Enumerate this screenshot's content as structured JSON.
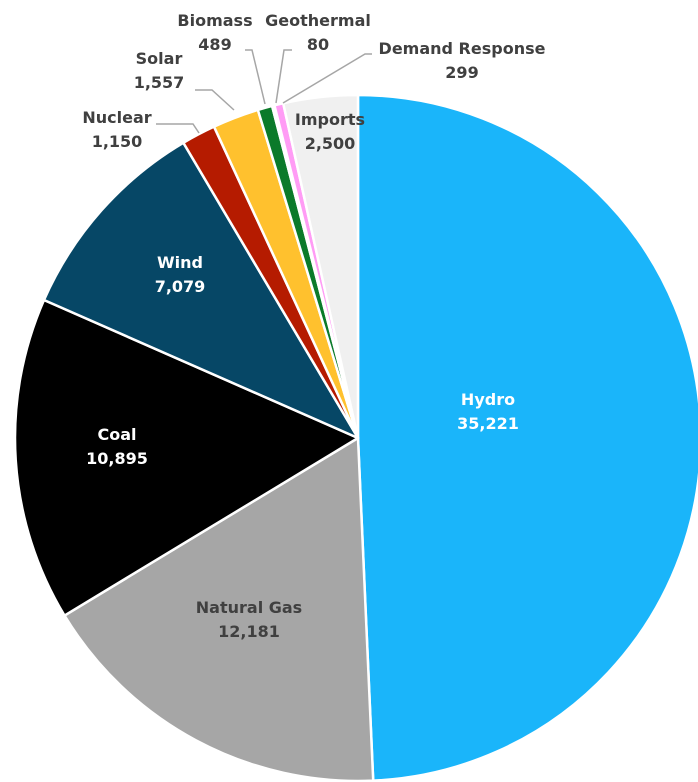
{
  "chart_data": {
    "type": "pie",
    "title": "",
    "slices": [
      {
        "label": "Hydro",
        "value_text": "35,221",
        "value": 35221,
        "color": "#1ab5fa",
        "label_color": "#ffffff"
      },
      {
        "label": "Natural Gas",
        "value_text": "12,181",
        "value": 12181,
        "color": "#a6a6a6",
        "label_color": "#404040"
      },
      {
        "label": "Coal",
        "value_text": "10,895",
        "value": 10895,
        "color": "#000000",
        "label_color": "#ffffff"
      },
      {
        "label": "Wind",
        "value_text": "7,079",
        "value": 7079,
        "color": "#064766",
        "label_color": "#ffffff"
      },
      {
        "label": "Nuclear",
        "value_text": "1,150",
        "value": 1150,
        "color": "#b51b00",
        "label_color": "#404040"
      },
      {
        "label": "Solar",
        "value_text": "1,557",
        "value": 1557,
        "color": "#ffc12e",
        "label_color": "#404040"
      },
      {
        "label": "Biomass",
        "value_text": "489",
        "value": 489,
        "color": "#0b7a2a",
        "label_color": "#404040"
      },
      {
        "label": "Geothermal",
        "value_text": "80",
        "value": 80,
        "color": "#7a3d96",
        "label_color": "#404040"
      },
      {
        "label": "Demand Response",
        "value_text": "299",
        "value": 299,
        "color": "#ff9cf5",
        "label_color": "#404040"
      },
      {
        "label": "Imports",
        "value_text": "2,500",
        "value": 2500,
        "color": "#f0f0f0",
        "label_color": "#404040"
      }
    ]
  }
}
